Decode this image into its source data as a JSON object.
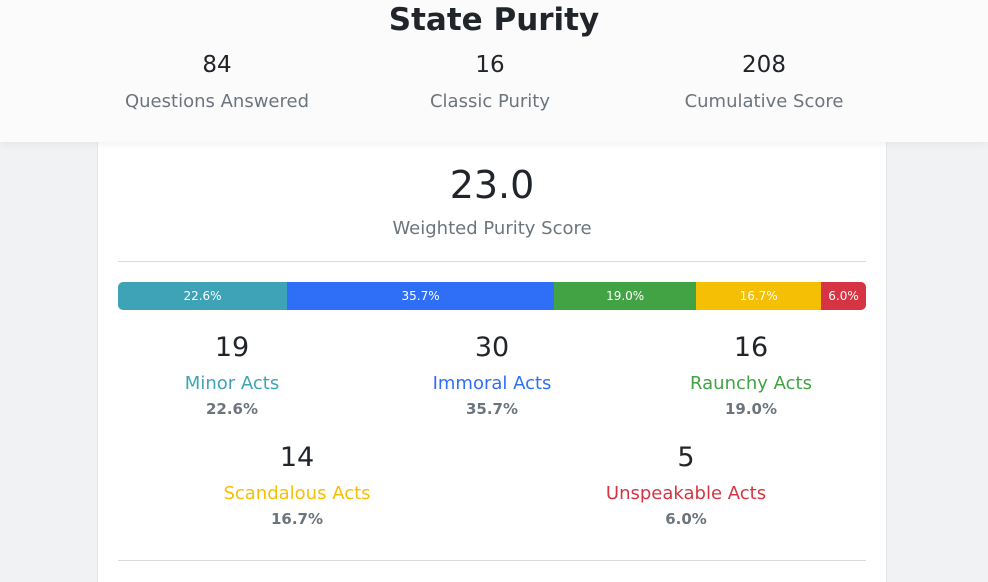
{
  "header": {
    "title": "State Purity",
    "stats": [
      {
        "value": "84",
        "label": "Questions Answered"
      },
      {
        "value": "16",
        "label": "Classic Purity"
      },
      {
        "value": "208",
        "label": "Cumulative Score"
      }
    ]
  },
  "weighted": {
    "score": "23.0",
    "label": "Weighted Purity Score"
  },
  "colors": {
    "minor": "#3fa3b8",
    "immoral": "#2f6ff7",
    "raunchy": "#41a343",
    "scandalous": "#f5bf05",
    "unspeakable": "#d63443"
  },
  "breakdown_bar": [
    {
      "key": "minor",
      "label": "22.6%",
      "fraction": 0.226
    },
    {
      "key": "immoral",
      "label": "35.7%",
      "fraction": 0.357
    },
    {
      "key": "raunchy",
      "label": "19.0%",
      "fraction": 0.19
    },
    {
      "key": "scandalous",
      "label": "16.7%",
      "fraction": 0.167
    },
    {
      "key": "unspeakable",
      "label": "6.0%",
      "fraction": 0.06
    }
  ],
  "categories": [
    {
      "key": "minor",
      "count": "19",
      "name": "Minor Acts",
      "percent": "22.6%"
    },
    {
      "key": "immoral",
      "count": "30",
      "name": "Immoral Acts",
      "percent": "35.7%"
    },
    {
      "key": "raunchy",
      "count": "16",
      "name": "Raunchy Acts",
      "percent": "19.0%"
    },
    {
      "key": "scandalous",
      "count": "14",
      "name": "Scandalous Acts",
      "percent": "16.7%"
    },
    {
      "key": "unspeakable",
      "count": "5",
      "name": "Unspeakable Acts",
      "percent": "6.0%"
    }
  ]
}
